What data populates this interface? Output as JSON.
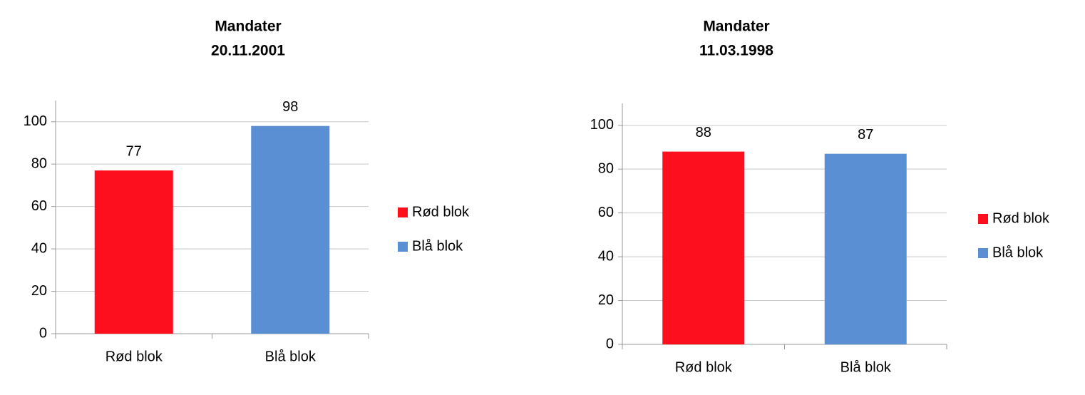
{
  "chart_data": [
    {
      "type": "bar",
      "title": "Mandater",
      "subtitle": "20.11.2001",
      "categories": [
        "Rød blok",
        "Blå blok"
      ],
      "values": [
        77,
        98
      ],
      "colors": [
        "#fe0f1e",
        "#5a8fd3"
      ],
      "ylim": [
        0,
        110
      ],
      "yticks": [
        0,
        20,
        40,
        60,
        80,
        100
      ],
      "grid": true,
      "legend": "right"
    },
    {
      "type": "bar",
      "title": "Mandater",
      "subtitle": "11.03.1998",
      "categories": [
        "Rød blok",
        "Blå blok"
      ],
      "values": [
        88,
        87
      ],
      "colors": [
        "#fe0f1e",
        "#5a8fd3"
      ],
      "ylim": [
        0,
        110
      ],
      "yticks": [
        0,
        20,
        40,
        60,
        80,
        100
      ],
      "grid": true,
      "legend": "right"
    }
  ]
}
